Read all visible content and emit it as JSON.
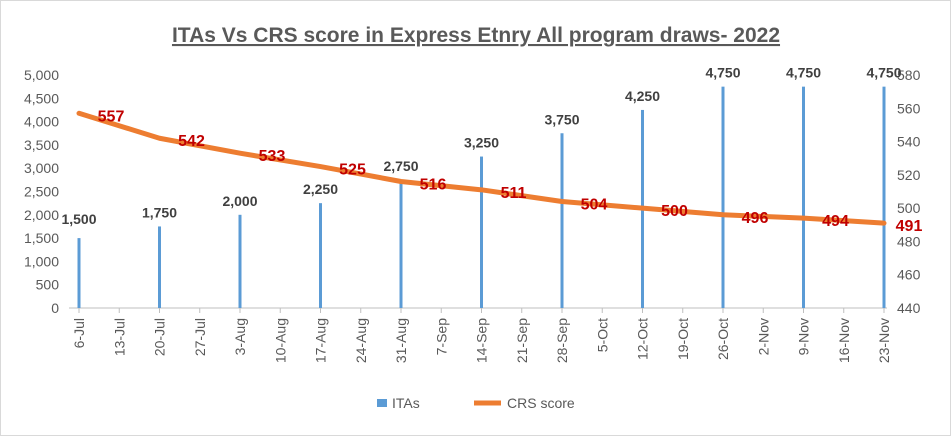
{
  "chart_data": {
    "type": "bar+line",
    "title": "ITAs Vs CRS score in Express Etnry All program draws- 2022",
    "x_tick_labels": [
      "6-Jul",
      "13-Jul",
      "20-Jul",
      "27-Jul",
      "3-Aug",
      "10-Aug",
      "17-Aug",
      "24-Aug",
      "31-Aug",
      "7-Sep",
      "14-Sep",
      "21-Sep",
      "28-Sep",
      "5-Oct",
      "12-Oct",
      "19-Oct",
      "26-Oct",
      "2-Nov",
      "9-Nov",
      "16-Nov",
      "23-Nov"
    ],
    "x": [
      "6-Jul",
      "20-Jul",
      "3-Aug",
      "17-Aug",
      "31-Aug",
      "14-Sep",
      "28-Sep",
      "12-Oct",
      "26-Oct",
      "9-Nov",
      "23-Nov"
    ],
    "series": [
      {
        "name": "ITAs",
        "type": "bar",
        "axis": "left",
        "color": "#5b9bd5",
        "values": [
          1500,
          1750,
          2000,
          2250,
          2750,
          3250,
          3750,
          4250,
          4750,
          4750,
          4750
        ],
        "labels": [
          "1,500",
          "1,750",
          "2,000",
          "2,250",
          "2,750",
          "3,250",
          "3,750",
          "4,250",
          "4,750",
          "4,750",
          "4,750"
        ]
      },
      {
        "name": "CRS score",
        "type": "line",
        "axis": "right",
        "color": "#ed7d31",
        "label_color": "#c00000",
        "values": [
          557,
          542,
          533,
          525,
          516,
          511,
          504,
          500,
          496,
          494,
          491
        ]
      }
    ],
    "y_left": {
      "min": 0,
      "max": 5000,
      "step": 500,
      "tick_labels": [
        "0",
        "500",
        "1,000",
        "1,500",
        "2,000",
        "2,500",
        "3,000",
        "3,500",
        "4,000",
        "4,500",
        "5,000"
      ]
    },
    "y_right": {
      "min": 440,
      "max": 580,
      "step": 20,
      "tick_labels": [
        "440",
        "460",
        "480",
        "500",
        "520",
        "540",
        "560",
        "580"
      ]
    },
    "grid": false,
    "legend": "bottom"
  }
}
